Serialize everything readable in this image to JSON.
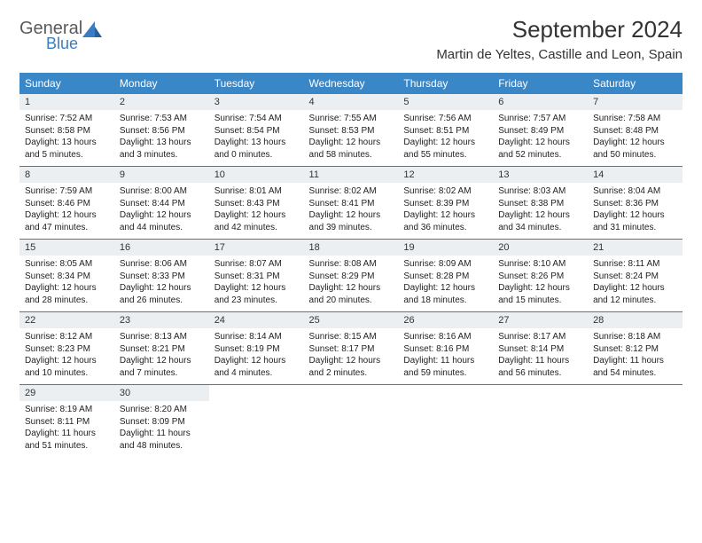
{
  "logo": {
    "text1": "General",
    "text2": "Blue"
  },
  "title": "September 2024",
  "location": "Martin de Yeltes, Castille and Leon, Spain",
  "colors": {
    "header_bg": "#3a87c8",
    "header_text": "#ffffff",
    "daynum_bg": "#eceff1",
    "row_border": "#3a7cc4",
    "logo_gray": "#5a5a5a",
    "logo_blue": "#3a7cc4",
    "body_text": "#222222"
  },
  "typography": {
    "title_fontsize": 26,
    "location_fontsize": 15,
    "dayheader_fontsize": 12,
    "daynum_fontsize": 11,
    "body_fontsize": 10
  },
  "day_headers": [
    "Sunday",
    "Monday",
    "Tuesday",
    "Wednesday",
    "Thursday",
    "Friday",
    "Saturday"
  ],
  "weeks": [
    [
      {
        "n": "1",
        "sr": "Sunrise: 7:52 AM",
        "ss": "Sunset: 8:58 PM",
        "dl": "Daylight: 13 hours and 5 minutes."
      },
      {
        "n": "2",
        "sr": "Sunrise: 7:53 AM",
        "ss": "Sunset: 8:56 PM",
        "dl": "Daylight: 13 hours and 3 minutes."
      },
      {
        "n": "3",
        "sr": "Sunrise: 7:54 AM",
        "ss": "Sunset: 8:54 PM",
        "dl": "Daylight: 13 hours and 0 minutes."
      },
      {
        "n": "4",
        "sr": "Sunrise: 7:55 AM",
        "ss": "Sunset: 8:53 PM",
        "dl": "Daylight: 12 hours and 58 minutes."
      },
      {
        "n": "5",
        "sr": "Sunrise: 7:56 AM",
        "ss": "Sunset: 8:51 PM",
        "dl": "Daylight: 12 hours and 55 minutes."
      },
      {
        "n": "6",
        "sr": "Sunrise: 7:57 AM",
        "ss": "Sunset: 8:49 PM",
        "dl": "Daylight: 12 hours and 52 minutes."
      },
      {
        "n": "7",
        "sr": "Sunrise: 7:58 AM",
        "ss": "Sunset: 8:48 PM",
        "dl": "Daylight: 12 hours and 50 minutes."
      }
    ],
    [
      {
        "n": "8",
        "sr": "Sunrise: 7:59 AM",
        "ss": "Sunset: 8:46 PM",
        "dl": "Daylight: 12 hours and 47 minutes."
      },
      {
        "n": "9",
        "sr": "Sunrise: 8:00 AM",
        "ss": "Sunset: 8:44 PM",
        "dl": "Daylight: 12 hours and 44 minutes."
      },
      {
        "n": "10",
        "sr": "Sunrise: 8:01 AM",
        "ss": "Sunset: 8:43 PM",
        "dl": "Daylight: 12 hours and 42 minutes."
      },
      {
        "n": "11",
        "sr": "Sunrise: 8:02 AM",
        "ss": "Sunset: 8:41 PM",
        "dl": "Daylight: 12 hours and 39 minutes."
      },
      {
        "n": "12",
        "sr": "Sunrise: 8:02 AM",
        "ss": "Sunset: 8:39 PM",
        "dl": "Daylight: 12 hours and 36 minutes."
      },
      {
        "n": "13",
        "sr": "Sunrise: 8:03 AM",
        "ss": "Sunset: 8:38 PM",
        "dl": "Daylight: 12 hours and 34 minutes."
      },
      {
        "n": "14",
        "sr": "Sunrise: 8:04 AM",
        "ss": "Sunset: 8:36 PM",
        "dl": "Daylight: 12 hours and 31 minutes."
      }
    ],
    [
      {
        "n": "15",
        "sr": "Sunrise: 8:05 AM",
        "ss": "Sunset: 8:34 PM",
        "dl": "Daylight: 12 hours and 28 minutes."
      },
      {
        "n": "16",
        "sr": "Sunrise: 8:06 AM",
        "ss": "Sunset: 8:33 PM",
        "dl": "Daylight: 12 hours and 26 minutes."
      },
      {
        "n": "17",
        "sr": "Sunrise: 8:07 AM",
        "ss": "Sunset: 8:31 PM",
        "dl": "Daylight: 12 hours and 23 minutes."
      },
      {
        "n": "18",
        "sr": "Sunrise: 8:08 AM",
        "ss": "Sunset: 8:29 PM",
        "dl": "Daylight: 12 hours and 20 minutes."
      },
      {
        "n": "19",
        "sr": "Sunrise: 8:09 AM",
        "ss": "Sunset: 8:28 PM",
        "dl": "Daylight: 12 hours and 18 minutes."
      },
      {
        "n": "20",
        "sr": "Sunrise: 8:10 AM",
        "ss": "Sunset: 8:26 PM",
        "dl": "Daylight: 12 hours and 15 minutes."
      },
      {
        "n": "21",
        "sr": "Sunrise: 8:11 AM",
        "ss": "Sunset: 8:24 PM",
        "dl": "Daylight: 12 hours and 12 minutes."
      }
    ],
    [
      {
        "n": "22",
        "sr": "Sunrise: 8:12 AM",
        "ss": "Sunset: 8:23 PM",
        "dl": "Daylight: 12 hours and 10 minutes."
      },
      {
        "n": "23",
        "sr": "Sunrise: 8:13 AM",
        "ss": "Sunset: 8:21 PM",
        "dl": "Daylight: 12 hours and 7 minutes."
      },
      {
        "n": "24",
        "sr": "Sunrise: 8:14 AM",
        "ss": "Sunset: 8:19 PM",
        "dl": "Daylight: 12 hours and 4 minutes."
      },
      {
        "n": "25",
        "sr": "Sunrise: 8:15 AM",
        "ss": "Sunset: 8:17 PM",
        "dl": "Daylight: 12 hours and 2 minutes."
      },
      {
        "n": "26",
        "sr": "Sunrise: 8:16 AM",
        "ss": "Sunset: 8:16 PM",
        "dl": "Daylight: 11 hours and 59 minutes."
      },
      {
        "n": "27",
        "sr": "Sunrise: 8:17 AM",
        "ss": "Sunset: 8:14 PM",
        "dl": "Daylight: 11 hours and 56 minutes."
      },
      {
        "n": "28",
        "sr": "Sunrise: 8:18 AM",
        "ss": "Sunset: 8:12 PM",
        "dl": "Daylight: 11 hours and 54 minutes."
      }
    ],
    [
      {
        "n": "29",
        "sr": "Sunrise: 8:19 AM",
        "ss": "Sunset: 8:11 PM",
        "dl": "Daylight: 11 hours and 51 minutes."
      },
      {
        "n": "30",
        "sr": "Sunrise: 8:20 AM",
        "ss": "Sunset: 8:09 PM",
        "dl": "Daylight: 11 hours and 48 minutes."
      },
      null,
      null,
      null,
      null,
      null
    ]
  ]
}
